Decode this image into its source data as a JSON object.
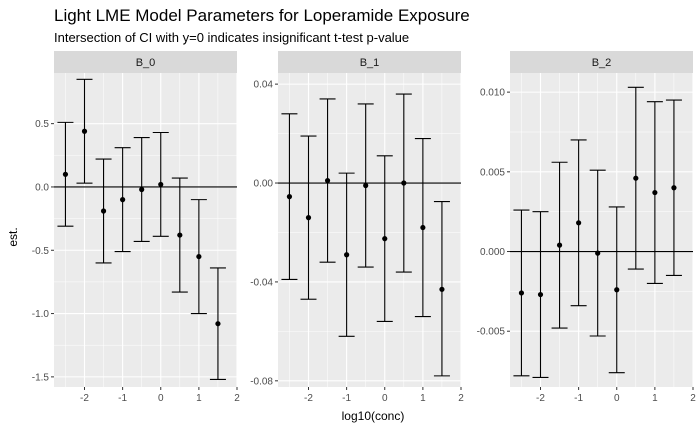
{
  "chart_data": {
    "type": "errorbar",
    "title": "Light LME Model Parameters for Loperamide Exposure",
    "subtitle": "Intersection of CI with y=0 indicates insignificant t-test p-value",
    "xlabel": "log10(conc)",
    "ylabel": "est.",
    "xlim": [
      -2.8,
      2.0
    ],
    "x_ticks": [
      -2,
      -1,
      0,
      1,
      2
    ],
    "reference_line_y": 0,
    "grid": true,
    "colors": {
      "panel_bg": "#ebebeb",
      "strip_bg": "#d9d9d9",
      "grid": "#ffffff",
      "marks": "#000000"
    },
    "panels": [
      {
        "name": "B_0",
        "ylim": [
          -1.58,
          0.9
        ],
        "y_ticks": [
          0.5,
          0.0,
          -0.5,
          -1.0,
          -1.5
        ],
        "y_tick_labels": [
          "0.5",
          "0.0",
          "-0.5",
          "-1.0",
          "-1.5"
        ],
        "points": [
          {
            "x": -2.5,
            "est": 0.1,
            "lo": -0.31,
            "hi": 0.51
          },
          {
            "x": -2.0,
            "est": 0.44,
            "lo": 0.03,
            "hi": 0.85
          },
          {
            "x": -1.5,
            "est": -0.19,
            "lo": -0.6,
            "hi": 0.22
          },
          {
            "x": -1.0,
            "est": -0.1,
            "lo": -0.51,
            "hi": 0.31
          },
          {
            "x": -0.5,
            "est": -0.02,
            "lo": -0.43,
            "hi": 0.39
          },
          {
            "x": 0.0,
            "est": 0.02,
            "lo": -0.39,
            "hi": 0.43
          },
          {
            "x": 0.5,
            "est": -0.38,
            "lo": -0.83,
            "hi": 0.07
          },
          {
            "x": 1.0,
            "est": -0.55,
            "lo": -1.0,
            "hi": -0.1
          },
          {
            "x": 1.5,
            "est": -1.08,
            "lo": -1.52,
            "hi": -0.64
          }
        ]
      },
      {
        "name": "B_1",
        "ylim": [
          -0.0825,
          0.0445
        ],
        "y_ticks": [
          0.04,
          0.0,
          -0.04,
          -0.08
        ],
        "y_tick_labels": [
          "0.04",
          "0.00",
          "-0.04",
          "-0.08"
        ],
        "points": [
          {
            "x": -2.5,
            "est": -0.0055,
            "lo": -0.039,
            "hi": 0.028
          },
          {
            "x": -2.0,
            "est": -0.014,
            "lo": -0.047,
            "hi": 0.019
          },
          {
            "x": -1.5,
            "est": 0.001,
            "lo": -0.032,
            "hi": 0.034
          },
          {
            "x": -1.0,
            "est": -0.029,
            "lo": -0.062,
            "hi": 0.004
          },
          {
            "x": -0.5,
            "est": -0.001,
            "lo": -0.034,
            "hi": 0.032
          },
          {
            "x": 0.0,
            "est": -0.0225,
            "lo": -0.056,
            "hi": 0.011
          },
          {
            "x": 0.5,
            "est": 0.0,
            "lo": -0.036,
            "hi": 0.036
          },
          {
            "x": 1.0,
            "est": -0.018,
            "lo": -0.054,
            "hi": 0.018
          },
          {
            "x": 1.5,
            "est": -0.043,
            "lo": -0.078,
            "hi": -0.0075
          }
        ]
      },
      {
        "name": "B_2",
        "ylim": [
          -0.0085,
          0.0112
        ],
        "y_ticks": [
          0.01,
          0.005,
          0.0,
          -0.005
        ],
        "y_tick_labels": [
          "0.010",
          "0.005",
          "0.000",
          "-0.005"
        ],
        "points": [
          {
            "x": -2.5,
            "est": -0.0026,
            "lo": -0.0078,
            "hi": 0.0026
          },
          {
            "x": -2.0,
            "est": -0.0027,
            "lo": -0.0079,
            "hi": 0.0025
          },
          {
            "x": -1.5,
            "est": 0.0004,
            "lo": -0.0048,
            "hi": 0.0056
          },
          {
            "x": -1.0,
            "est": 0.0018,
            "lo": -0.0034,
            "hi": 0.007
          },
          {
            "x": -0.5,
            "est": -0.0001,
            "lo": -0.0053,
            "hi": 0.0051
          },
          {
            "x": 0.0,
            "est": -0.0024,
            "lo": -0.0076,
            "hi": 0.0028
          },
          {
            "x": 0.5,
            "est": 0.0046,
            "lo": -0.0011,
            "hi": 0.0103
          },
          {
            "x": 1.0,
            "est": 0.0037,
            "lo": -0.002,
            "hi": 0.0094
          },
          {
            "x": 1.5,
            "est": 0.004,
            "lo": -0.0015,
            "hi": 0.0095
          }
        ]
      }
    ]
  }
}
